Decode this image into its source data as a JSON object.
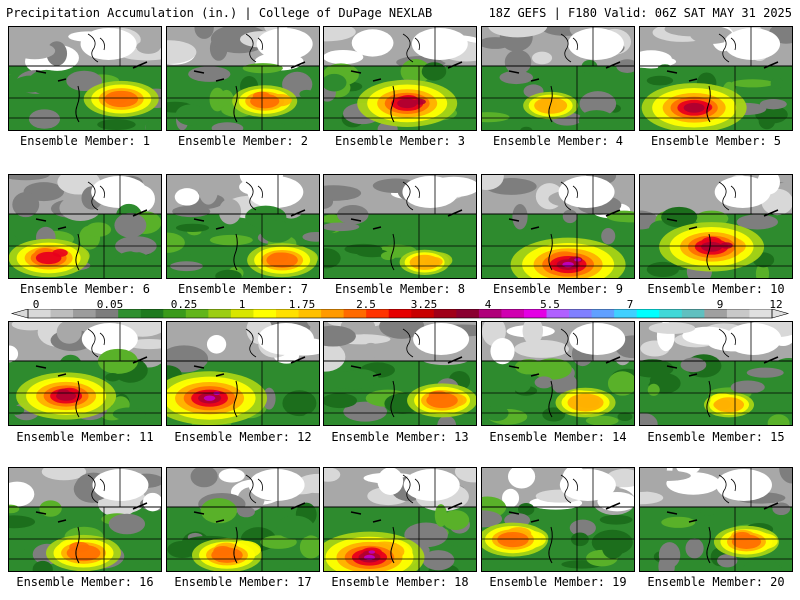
{
  "header": {
    "left": "Precipitation Accumulation (in.) | College of DuPage NEXLAB",
    "right": "18Z GEFS | F180 Valid: 06Z SAT MAY 31 2025"
  },
  "colorbar": {
    "ticks": [
      "0",
      "0.05",
      "0.25",
      "1",
      "1.75",
      "2.5",
      "3.25",
      "4",
      "5.5",
      "7",
      "9",
      "12"
    ],
    "colors": [
      "#d9d9d9",
      "#bdbdbd",
      "#9c9c9c",
      "#7d7d7d",
      "#2f8f2f",
      "#1f7a1f",
      "#3a9a1a",
      "#62b51a",
      "#9ccd12",
      "#d8e600",
      "#ffff00",
      "#ffe000",
      "#ffc000",
      "#ff9a00",
      "#ff6a00",
      "#ff3300",
      "#e60000",
      "#c80000",
      "#a00018",
      "#8a0030",
      "#b0007a",
      "#d000b0",
      "#e400e4",
      "#b060ff",
      "#8080ff",
      "#60a0ff",
      "#40d0ff",
      "#00ffff",
      "#40d8d8",
      "#60c0c0",
      "#a0a0a0",
      "#c8c8c8",
      "#e0e0e0"
    ]
  },
  "palette": {
    "lightgray": "#d8d8d8",
    "gray": "#a8a8a8",
    "darkgray": "#7e7e7e",
    "green": "#2e8b2e",
    "darkgreen": "#1c6e1c",
    "lightgreen": "#59b129",
    "yellowgreen": "#a8d415",
    "yellow": "#ffff00",
    "orange": "#ffb000",
    "darkorange": "#ff7000",
    "red": "#e8001c",
    "darkred": "#b00030",
    "magenta": "#c000c0"
  },
  "members": [
    {
      "label": "Ensemble Member: 1",
      "intensity": 0.55
    },
    {
      "label": "Ensemble Member: 2",
      "intensity": 0.45
    },
    {
      "label": "Ensemble Member: 3",
      "intensity": 0.8
    },
    {
      "label": "Ensemble Member: 4",
      "intensity": 0.35
    },
    {
      "label": "Ensemble Member: 5",
      "intensity": 0.85
    },
    {
      "label": "Ensemble Member: 6",
      "intensity": 0.6
    },
    {
      "label": "Ensemble Member: 7",
      "intensity": 0.5
    },
    {
      "label": "Ensemble Member: 8",
      "intensity": 0.3
    },
    {
      "label": "Ensemble Member: 9",
      "intensity": 0.95
    },
    {
      "label": "Ensemble Member: 10",
      "intensity": 0.85
    },
    {
      "label": "Ensemble Member: 11",
      "intensity": 0.8
    },
    {
      "label": "Ensemble Member: 12",
      "intensity": 0.95
    },
    {
      "label": "Ensemble Member: 13",
      "intensity": 0.5
    },
    {
      "label": "Ensemble Member: 14",
      "intensity": 0.4
    },
    {
      "label": "Ensemble Member: 15",
      "intensity": 0.3
    },
    {
      "label": "Ensemble Member: 16",
      "intensity": 0.55
    },
    {
      "label": "Ensemble Member: 17",
      "intensity": 0.5
    },
    {
      "label": "Ensemble Member: 18",
      "intensity": 0.9
    },
    {
      "label": "Ensemble Member: 19",
      "intensity": 0.5
    },
    {
      "label": "Ensemble Member: 20",
      "intensity": 0.45
    }
  ]
}
